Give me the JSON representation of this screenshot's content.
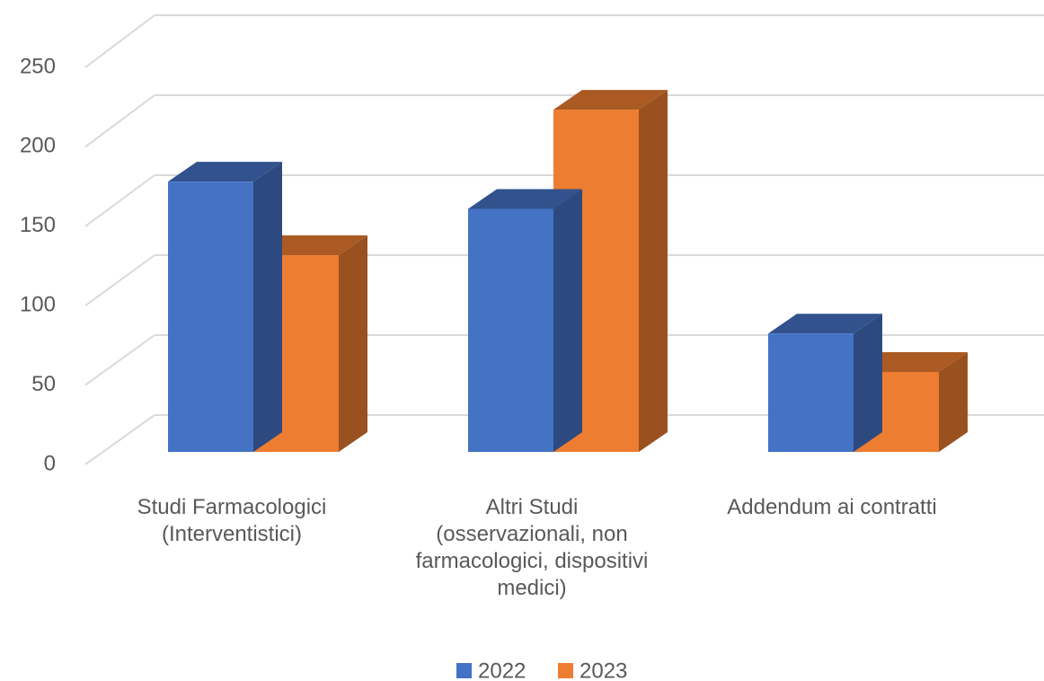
{
  "chart_data": {
    "type": "bar3d",
    "categories": [
      "Studi Farmacologici (Interventistici)",
      "Altri Studi (osservazionali, non farmacologici, dispositivi medici)",
      "Addendum ai contratti"
    ],
    "series": [
      {
        "name": "2022",
        "color": "#4472c4",
        "values": [
          169,
          152,
          74
        ]
      },
      {
        "name": "2023",
        "color": "#ed7d31",
        "values": [
          123,
          214,
          50
        ]
      }
    ],
    "ylim": [
      0,
      250
    ],
    "yticks": [
      0,
      50,
      100,
      150,
      200,
      250
    ],
    "grid": true,
    "legend": "bottom"
  }
}
